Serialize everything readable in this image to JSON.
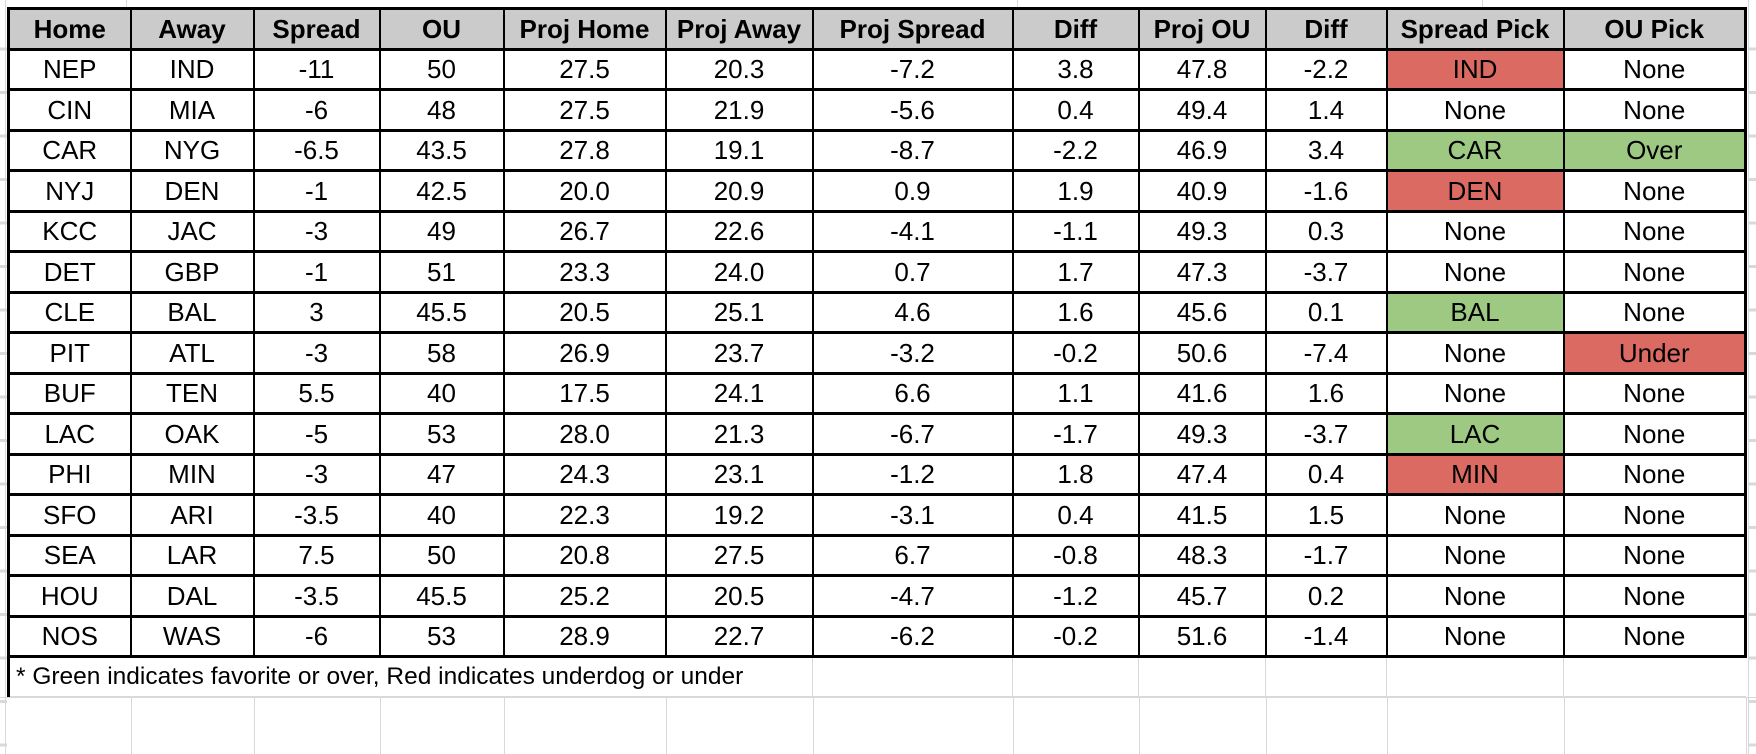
{
  "table": {
    "columns": [
      "Home",
      "Away",
      "Spread",
      "OU",
      "Proj Home",
      "Proj Away",
      "Proj Spread",
      "Diff",
      "Proj OU",
      "Diff",
      "Spread Pick",
      "OU Pick"
    ],
    "rows": [
      {
        "cells": [
          "NEP",
          "IND",
          "-11",
          "50",
          "27.5",
          "20.3",
          "-7.2",
          "3.8",
          "47.8",
          "-2.2",
          "IND",
          "None"
        ],
        "spread_pick_color": "red",
        "ou_pick_color": "none"
      },
      {
        "cells": [
          "CIN",
          "MIA",
          "-6",
          "48",
          "27.5",
          "21.9",
          "-5.6",
          "0.4",
          "49.4",
          "1.4",
          "None",
          "None"
        ],
        "spread_pick_color": "none",
        "ou_pick_color": "none"
      },
      {
        "cells": [
          "CAR",
          "NYG",
          "-6.5",
          "43.5",
          "27.8",
          "19.1",
          "-8.7",
          "-2.2",
          "46.9",
          "3.4",
          "CAR",
          "Over"
        ],
        "spread_pick_color": "green",
        "ou_pick_color": "green"
      },
      {
        "cells": [
          "NYJ",
          "DEN",
          "-1",
          "42.5",
          "20.0",
          "20.9",
          "0.9",
          "1.9",
          "40.9",
          "-1.6",
          "DEN",
          "None"
        ],
        "spread_pick_color": "red",
        "ou_pick_color": "none"
      },
      {
        "cells": [
          "KCC",
          "JAC",
          "-3",
          "49",
          "26.7",
          "22.6",
          "-4.1",
          "-1.1",
          "49.3",
          "0.3",
          "None",
          "None"
        ],
        "spread_pick_color": "none",
        "ou_pick_color": "none"
      },
      {
        "cells": [
          "DET",
          "GBP",
          "-1",
          "51",
          "23.3",
          "24.0",
          "0.7",
          "1.7",
          "47.3",
          "-3.7",
          "None",
          "None"
        ],
        "spread_pick_color": "none",
        "ou_pick_color": "none"
      },
      {
        "cells": [
          "CLE",
          "BAL",
          "3",
          "45.5",
          "20.5",
          "25.1",
          "4.6",
          "1.6",
          "45.6",
          "0.1",
          "BAL",
          "None"
        ],
        "spread_pick_color": "green",
        "ou_pick_color": "none"
      },
      {
        "cells": [
          "PIT",
          "ATL",
          "-3",
          "58",
          "26.9",
          "23.7",
          "-3.2",
          "-0.2",
          "50.6",
          "-7.4",
          "None",
          "Under"
        ],
        "spread_pick_color": "none",
        "ou_pick_color": "red"
      },
      {
        "cells": [
          "BUF",
          "TEN",
          "5.5",
          "40",
          "17.5",
          "24.1",
          "6.6",
          "1.1",
          "41.6",
          "1.6",
          "None",
          "None"
        ],
        "spread_pick_color": "none",
        "ou_pick_color": "none"
      },
      {
        "cells": [
          "LAC",
          "OAK",
          "-5",
          "53",
          "28.0",
          "21.3",
          "-6.7",
          "-1.7",
          "49.3",
          "-3.7",
          "LAC",
          "None"
        ],
        "spread_pick_color": "green",
        "ou_pick_color": "none"
      },
      {
        "cells": [
          "PHI",
          "MIN",
          "-3",
          "47",
          "24.3",
          "23.1",
          "-1.2",
          "1.8",
          "47.4",
          "0.4",
          "MIN",
          "None"
        ],
        "spread_pick_color": "red",
        "ou_pick_color": "none"
      },
      {
        "cells": [
          "SFO",
          "ARI",
          "-3.5",
          "40",
          "22.3",
          "19.2",
          "-3.1",
          "0.4",
          "41.5",
          "1.5",
          "None",
          "None"
        ],
        "spread_pick_color": "none",
        "ou_pick_color": "none"
      },
      {
        "cells": [
          "SEA",
          "LAR",
          "7.5",
          "50",
          "20.8",
          "27.5",
          "6.7",
          "-0.8",
          "48.3",
          "-1.7",
          "None",
          "None"
        ],
        "spread_pick_color": "none",
        "ou_pick_color": "none"
      },
      {
        "cells": [
          "HOU",
          "DAL",
          "-3.5",
          "45.5",
          "25.2",
          "20.5",
          "-4.7",
          "-1.2",
          "45.7",
          "0.2",
          "None",
          "None"
        ],
        "spread_pick_color": "none",
        "ou_pick_color": "none"
      },
      {
        "cells": [
          "NOS",
          "WAS",
          "-6",
          "53",
          "28.9",
          "22.7",
          "-6.2",
          "-0.2",
          "51.6",
          "-1.4",
          "None",
          "None"
        ],
        "spread_pick_color": "none",
        "ou_pick_color": "none"
      }
    ],
    "footnote": "* Green indicates favorite or over, Red indicates underdog or under"
  },
  "colors": {
    "header_bg": "#cbcbcb",
    "pick_green": "#9dc983",
    "pick_red": "#da6a62",
    "grid_light": "#d9d9d9",
    "border_black": "#000000"
  }
}
